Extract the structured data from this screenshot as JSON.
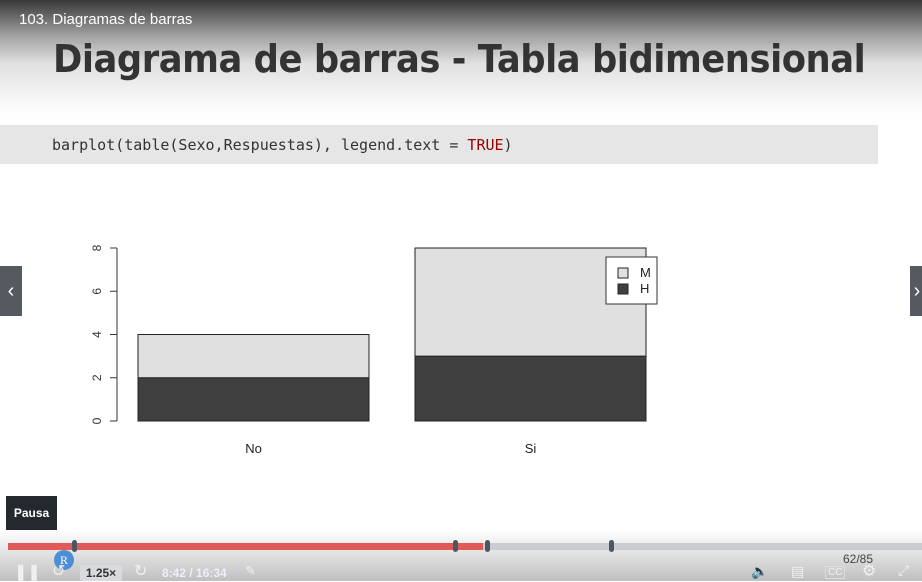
{
  "lecture_title": "103. Diagramas de barras",
  "slide_title": "Diagrama de barras - Tabla bidimensional",
  "code": {
    "before": "barplot(table(Sexo,Respuestas), legend.text = ",
    "keyword": "TRUE",
    "after": ")"
  },
  "chart_data": {
    "type": "bar",
    "stacked": true,
    "categories": [
      "No",
      "Si"
    ],
    "series": [
      {
        "name": "H",
        "values": [
          2,
          3
        ],
        "color": "#404040"
      },
      {
        "name": "M",
        "values": [
          2,
          5
        ],
        "color": "#e0e0e0"
      }
    ],
    "yticks": [
      "0",
      "2",
      "4",
      "6",
      "8"
    ],
    "ylim": [
      0,
      8
    ],
    "legend": {
      "position": "top-right",
      "entries": [
        "M",
        "H"
      ]
    },
    "grid": false
  },
  "player": {
    "pause_tooltip": "Pausa",
    "speed_label": "1.25×",
    "time_label": "8:42 / 16:34",
    "page_counter": "62/85",
    "progress_fraction": 0.52,
    "avatar_letter": "R",
    "chapter_fractions": [
      0.072,
      0.489,
      0.524,
      0.66
    ],
    "accent_color": "#e05a5a"
  },
  "nav": {
    "prev_icon": "chevron-left-icon",
    "next_icon": "chevron-right-icon"
  }
}
